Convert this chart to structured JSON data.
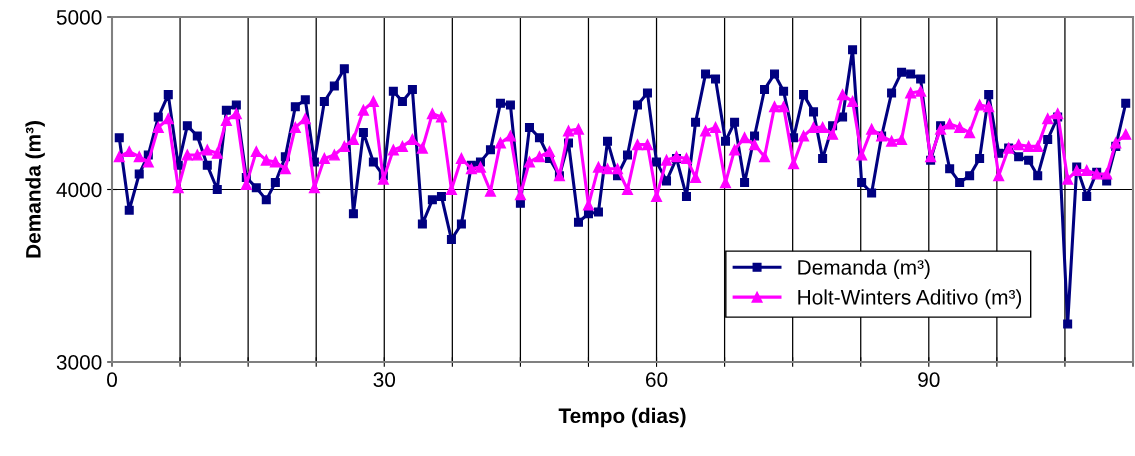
{
  "chart_data": {
    "type": "line",
    "xlabel": "Tempo (dias)",
    "ylabel": "Demanda (m³)",
    "x": [
      0.8,
      1.9,
      3.0,
      4.0,
      5.1,
      6.2,
      7.3,
      8.3,
      9.4,
      10.5,
      11.6,
      12.6,
      13.7,
      14.8,
      15.9,
      17.0,
      18.0,
      19.1,
      20.2,
      21.3,
      22.3,
      23.4,
      24.5,
      25.6,
      26.6,
      27.7,
      28.8,
      29.9,
      31.0,
      32.0,
      33.1,
      34.2,
      35.3,
      36.3,
      37.4,
      38.5,
      39.6,
      40.6,
      41.7,
      42.8,
      43.9,
      45.0,
      46.0,
      47.1,
      48.2,
      49.3,
      50.3,
      51.4,
      52.5,
      53.6,
      54.6,
      55.7,
      56.8,
      57.9,
      59.0,
      60.0,
      61.1,
      62.2,
      63.3,
      64.3,
      65.4,
      66.5,
      67.6,
      68.6,
      69.7,
      70.8,
      71.9,
      73.0,
      74.0,
      75.1,
      76.2,
      77.3,
      78.3,
      79.4,
      80.5,
      81.6,
      82.6,
      83.7,
      84.8,
      85.9,
      87.0,
      88.0,
      89.1,
      90.2,
      91.3,
      92.3,
      93.4,
      94.5,
      95.6,
      96.6,
      97.7,
      98.8,
      99.9,
      101.0,
      102.0,
      103.1,
      104.2,
      105.3,
      106.3,
      107.4,
      108.5,
      109.6,
      110.6,
      111.7
    ],
    "series": [
      {
        "name": "Demanda (m³)",
        "color": "#000080",
        "marker": "square",
        "values": [
          4300,
          3880,
          4090,
          4200,
          4420,
          4550,
          4140,
          4370,
          4310,
          4140,
          4000,
          4460,
          4490,
          4070,
          4010,
          3940,
          4040,
          4190,
          4480,
          4520,
          4160,
          4510,
          4600,
          4700,
          3860,
          4330,
          4160,
          4080,
          4570,
          4510,
          4580,
          3800,
          3940,
          3960,
          3710,
          3800,
          4140,
          4160,
          4230,
          4500,
          4490,
          3920,
          4360,
          4300,
          4180,
          4080,
          4270,
          3810,
          3860,
          3870,
          4280,
          4080,
          4200,
          4490,
          4560,
          4160,
          4050,
          4180,
          3960,
          4390,
          4670,
          4640,
          4280,
          4390,
          4040,
          4310,
          4580,
          4670,
          4570,
          4300,
          4550,
          4450,
          4180,
          4370,
          4420,
          4810,
          4040,
          3980,
          4310,
          4560,
          4680,
          4670,
          4640,
          4170,
          4370,
          4120,
          4040,
          4080,
          4180,
          4550,
          4210,
          4240,
          4190,
          4170,
          4080,
          4290,
          4420,
          3220,
          4130,
          3960,
          4100,
          4050,
          4250,
          4500
        ]
      },
      {
        "name": "Holt-Winters Aditivo (m³)",
        "color": "#ff00ff",
        "marker": "triangle",
        "values": [
          4190,
          4220,
          4190,
          4160,
          4360,
          4410,
          4010,
          4200,
          4200,
          4230,
          4210,
          4400,
          4440,
          4030,
          4220,
          4170,
          4160,
          4120,
          4360,
          4410,
          4010,
          4180,
          4200,
          4250,
          4290,
          4460,
          4510,
          4060,
          4230,
          4250,
          4290,
          4240,
          4440,
          4420,
          4000,
          4180,
          4120,
          4130,
          3990,
          4270,
          4310,
          3970,
          4160,
          4190,
          4220,
          4080,
          4340,
          4350,
          3910,
          4130,
          4120,
          4120,
          4000,
          4260,
          4260,
          3960,
          4170,
          4190,
          4180,
          4070,
          4340,
          4360,
          4040,
          4230,
          4300,
          4260,
          4190,
          4480,
          4480,
          4150,
          4310,
          4360,
          4360,
          4320,
          4550,
          4510,
          4200,
          4350,
          4310,
          4280,
          4290,
          4560,
          4570,
          4190,
          4350,
          4380,
          4360,
          4330,
          4490,
          4480,
          4080,
          4240,
          4260,
          4250,
          4250,
          4410,
          4440,
          4060,
          4110,
          4110,
          4090,
          4090,
          4270,
          4320
        ]
      }
    ],
    "xlim": [
      0,
      112.5
    ],
    "ylim": [
      3000,
      5000
    ],
    "xticks": [
      0,
      {
        "value": 7.5,
        "label": null
      },
      {
        "value": 15,
        "label": null
      },
      {
        "value": 22.5,
        "label": null
      },
      30,
      {
        "value": 37.5,
        "label": null
      },
      {
        "value": 45,
        "label": null
      },
      {
        "value": 52.5,
        "label": null
      },
      60,
      {
        "value": 67.5,
        "label": null
      },
      {
        "value": 75,
        "label": null
      },
      {
        "value": 82.5,
        "label": null
      },
      90,
      {
        "value": 97.5,
        "label": null
      },
      {
        "value": 105,
        "label": null
      },
      {
        "value": 112.5,
        "label": null
      }
    ],
    "yticks": [
      3000,
      4000,
      5000
    ],
    "grid": true,
    "legend": "bottom right",
    "line_style": "solid"
  }
}
